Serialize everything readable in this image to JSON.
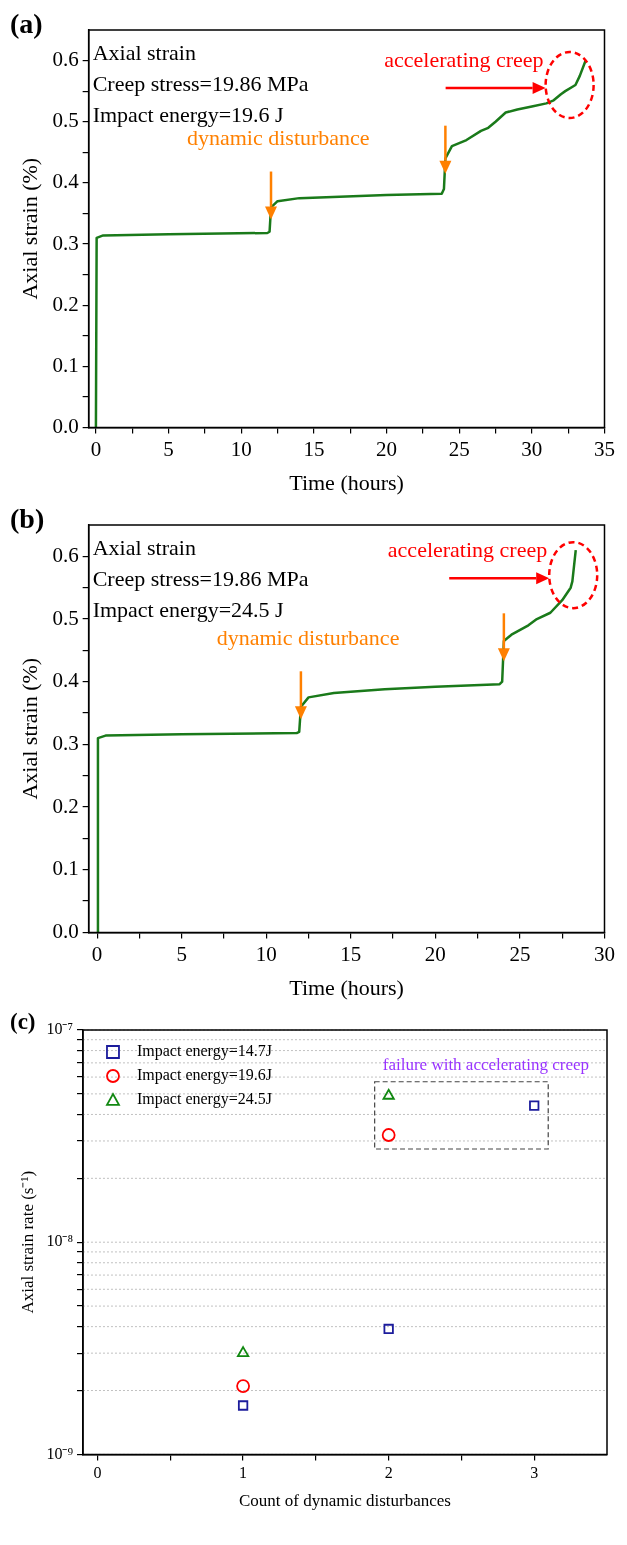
{
  "chart_data": [
    {
      "type": "line",
      "title": "(a)",
      "xlabel": "Time (hours)",
      "ylabel": "Axial strain (%)",
      "annotations": [
        "Axial strain",
        "Creep stress=19.86 MPa",
        "Impact energy=19.6 J",
        {
          "text": "dynamic disturbance",
          "x": 12,
          "y": 0.36
        },
        {
          "text": "accelerating creep",
          "x": 32.6,
          "y": 0.56
        }
      ],
      "series": [
        {
          "color": "#1a7a1a",
          "x": [
            0,
            0.05,
            0.5,
            5,
            11.8,
            11.95,
            12.05,
            12.5,
            14,
            20,
            23.8,
            23.95,
            24.05,
            24.5,
            25.5,
            26.5,
            27,
            27.5,
            28.2,
            29,
            30,
            31,
            31.5,
            32,
            32.3,
            33,
            33.3,
            33.7
          ],
          "values": [
            0,
            0.31,
            0.314,
            0.316,
            0.318,
            0.32,
            0.36,
            0.37,
            0.375,
            0.38,
            0.382,
            0.39,
            0.44,
            0.46,
            0.47,
            0.485,
            0.49,
            0.5,
            0.515,
            0.52,
            0.525,
            0.53,
            0.535,
            0.545,
            0.55,
            0.56,
            0.575,
            0.6
          ]
        }
      ],
      "xlim": [
        -0.5,
        35
      ],
      "xticks": [
        0,
        {
          "value": 2.5,
          "label": null
        },
        5,
        {
          "value": 7.5,
          "label": null
        },
        10,
        {
          "value": 12.5,
          "label": null
        },
        15,
        {
          "value": 17.5,
          "label": null
        },
        20,
        {
          "value": 22.5,
          "label": null
        },
        25,
        {
          "value": 27.5,
          "label": null
        },
        30,
        {
          "value": 32.5,
          "label": null
        },
        35
      ],
      "ylim": [
        0,
        0.65
      ],
      "yticks": [
        {
          "value": 0,
          "label": "0.0"
        },
        {
          "value": 0.05,
          "label": null
        },
        0.1,
        {
          "value": 0.15,
          "label": null
        },
        0.2,
        {
          "value": 0.25,
          "label": null
        },
        0.3,
        {
          "value": 0.35,
          "label": null
        },
        0.4,
        {
          "value": 0.45,
          "label": null
        },
        0.5,
        {
          "value": 0.55,
          "label": null
        },
        0.6
      ],
      "marker": "none",
      "line_style": "solid"
    },
    {
      "type": "line",
      "title": "(b)",
      "xlabel": "Time (hours)",
      "ylabel": "Axial strain (%)",
      "annotations": [
        "Axial strain",
        "Creep stress=19.86 MPa",
        "Impact energy=24.5 J",
        {
          "text": "dynamic disturbance",
          "x": 12,
          "y": 0.36
        },
        {
          "text": "accelerating creep",
          "x": 28.15,
          "y": 0.57
        }
      ],
      "series": [
        {
          "color": "#1a7a1a",
          "x": [
            0,
            0.05,
            0.5,
            5,
            11.8,
            11.95,
            12.05,
            12.5,
            14,
            17,
            20,
            23.8,
            23.95,
            24.05,
            24.5,
            25.5,
            26,
            26.8,
            27.5,
            28,
            28.1,
            28.3
          ],
          "values": [
            0,
            0.31,
            0.314,
            0.316,
            0.318,
            0.32,
            0.36,
            0.375,
            0.382,
            0.388,
            0.392,
            0.396,
            0.4,
            0.465,
            0.475,
            0.49,
            0.5,
            0.51,
            0.53,
            0.55,
            0.56,
            0.61
          ]
        }
      ],
      "xlim": [
        -0.5,
        30
      ],
      "xticks": [
        0,
        {
          "value": 2.5,
          "label": null
        },
        5,
        {
          "value": 7.5,
          "label": null
        },
        10,
        {
          "value": 12.5,
          "label": null
        },
        15,
        {
          "value": 17.5,
          "label": null
        },
        20,
        {
          "value": 22.5,
          "label": null
        },
        25,
        {
          "value": 27.5,
          "label": null
        },
        30
      ],
      "ylim": [
        0,
        0.65
      ],
      "yticks": [
        {
          "value": 0,
          "label": "0.0"
        },
        {
          "value": 0.05,
          "label": null
        },
        0.1,
        {
          "value": 0.15,
          "label": null
        },
        0.2,
        {
          "value": 0.25,
          "label": null
        },
        0.3,
        {
          "value": 0.35,
          "label": null
        },
        0.4,
        {
          "value": 0.45,
          "label": null
        },
        0.5,
        {
          "value": 0.55,
          "label": null
        },
        0.6
      ],
      "marker": "none",
      "line_style": "solid"
    },
    {
      "type": "scatter",
      "title": "(c)",
      "xlabel": "Count of dynamic disturbances",
      "ylabel": "Axial strain rate (s⁻¹)",
      "annotations": [
        "failure with accelerating creep"
      ],
      "series": [
        {
          "name": "Impact energy=14.7J",
          "color": "#1c1c9c",
          "marker": "square",
          "x": [
            1,
            2,
            3
          ],
          "values": [
            1.7e-09,
            3.9e-09,
            4.4e-08
          ]
        },
        {
          "name": "Impact energy=19.6J",
          "color": "#ff0000",
          "marker": "circle",
          "x": [
            1,
            2
          ],
          "values": [
            2.1e-09,
            3.2e-08
          ]
        },
        {
          "name": "Impact energy=24.5J",
          "color": "#118811",
          "marker": "triangle",
          "x": [
            1,
            2
          ],
          "values": [
            3e-09,
            4.9e-08
          ]
        }
      ],
      "xlim": [
        -0.1,
        3.5
      ],
      "xticks": [
        0,
        {
          "value": 0.5,
          "label": null
        },
        1,
        {
          "value": 1.5,
          "label": null
        },
        2,
        {
          "value": 2.5,
          "label": null
        },
        3
      ],
      "log": "y",
      "ylim": [
        1e-09,
        1e-07
      ],
      "yticks": [
        {
          "value": 1e-09,
          "label": "10⁻⁹"
        },
        {
          "value": 2e-09,
          "label": null
        },
        {
          "value": 3e-09,
          "label": null
        },
        {
          "value": 4e-09,
          "label": null
        },
        {
          "value": 5e-09,
          "label": null
        },
        {
          "value": 6e-09,
          "label": null
        },
        {
          "value": 7e-09,
          "label": null
        },
        {
          "value": 8e-09,
          "label": null
        },
        {
          "value": 9e-09,
          "label": null
        },
        {
          "value": 1e-08,
          "label": "10⁻⁸"
        },
        {
          "value": 2e-08,
          "label": null
        },
        {
          "value": 3e-08,
          "label": null
        },
        {
          "value": 4e-08,
          "label": null
        },
        {
          "value": 5e-08,
          "label": null
        },
        {
          "value": 6e-08,
          "label": null
        },
        {
          "value": 7e-08,
          "label": null
        },
        {
          "value": 8e-08,
          "label": null
        },
        {
          "value": 9e-08,
          "label": null
        },
        {
          "value": 1e-07,
          "label": "10⁻⁷"
        }
      ],
      "grid": "y",
      "legend": "top left"
    }
  ]
}
